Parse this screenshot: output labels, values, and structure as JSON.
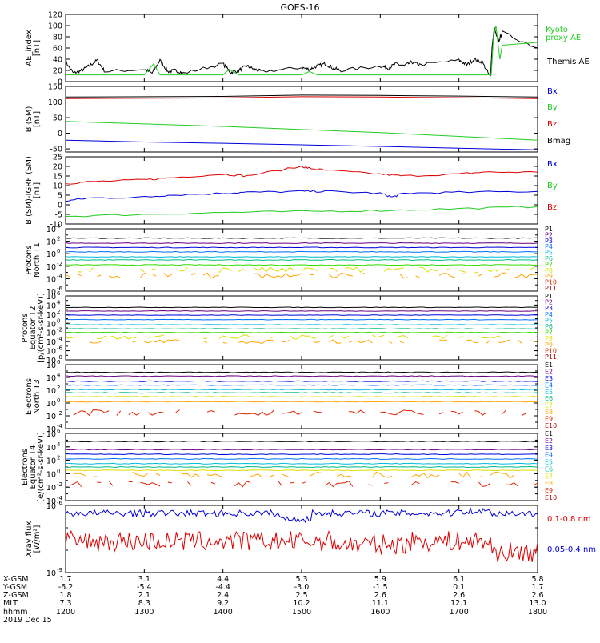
{
  "title": "GOES-16",
  "date": "2019 Dec 15",
  "chart_data": [
    {
      "type": "line",
      "panel": "ae",
      "ylabel_lines": [
        "AE_index",
        "[nT]"
      ],
      "ylim": [
        0,
        120
      ],
      "yticks": [
        "0",
        "20",
        "40",
        "60",
        "80",
        "100",
        "120"
      ],
      "yticks_values": [
        0,
        20,
        40,
        60,
        80,
        100,
        120
      ],
      "legend": [
        {
          "text": "Kyoto",
          "color": "#22cc22"
        },
        {
          "text": "proxy AE",
          "color": "#22cc22"
        },
        {
          "text": "Themis AE",
          "color": "#000000"
        }
      ],
      "series": [
        {
          "name": "Themis AE",
          "color": "#000000",
          "x": [
            1200,
            1210,
            1220,
            1230,
            1240,
            1250,
            1300,
            1310,
            1320,
            1330,
            1340,
            1350,
            1400,
            1410,
            1420,
            1430,
            1440,
            1450,
            1500,
            1510,
            1520,
            1530,
            1540,
            1550,
            1600,
            1610,
            1620,
            1630,
            1640,
            1650,
            1700,
            1710,
            1720,
            1730,
            1740,
            1742,
            1745,
            1750,
            1755,
            1800
          ],
          "y": [
            35,
            15,
            20,
            28,
            38,
            18,
            22,
            15,
            38,
            18,
            20,
            15,
            32,
            16,
            20,
            28,
            22,
            18,
            25,
            22,
            28,
            32,
            24,
            20,
            28,
            24,
            32,
            28,
            35,
            30,
            38,
            30,
            40,
            34,
            8,
            60,
            95,
            70,
            88,
            60
          ]
        },
        {
          "name": "Kyoto proxy AE",
          "color": "#22cc22",
          "x": [
            1200,
            1230,
            1300,
            1312,
            1320,
            1330,
            1400,
            1408,
            1420,
            1500,
            1510,
            1520,
            1600,
            1640,
            1700,
            1735,
            1741,
            1744,
            1747,
            1752,
            1755,
            1800
          ],
          "y": [
            12,
            12,
            12,
            32,
            12,
            12,
            12,
            22,
            12,
            12,
            18,
            12,
            12,
            12,
            12,
            12,
            12,
            80,
            100,
            40,
            65,
            70
          ]
        }
      ]
    },
    {
      "type": "line",
      "panel": "b_sm",
      "ylabel_lines": [
        "B (SM)",
        "[nT]"
      ],
      "ylim": [
        -60,
        150
      ],
      "yticks": [
        "-50",
        "0",
        "50",
        "100",
        "150"
      ],
      "yticks_values": [
        -50,
        0,
        50,
        100,
        150
      ],
      "legend": [
        {
          "text": "Bx",
          "color": "#0000dd"
        },
        {
          "text": "By",
          "color": "#22cc22"
        },
        {
          "text": "Bz",
          "color": "#dd0000"
        },
        {
          "text": "Bmag",
          "color": "#000000"
        }
      ],
      "series": [
        {
          "name": "Bmag",
          "color": "#000000",
          "x": [
            1200,
            1400,
            1500,
            1600,
            1700,
            1800
          ],
          "y": [
            116,
            118,
            122,
            121,
            119,
            116
          ]
        },
        {
          "name": "Bz",
          "color": "#dd0000",
          "x": [
            1200,
            1400,
            1500,
            1600,
            1700,
            1800
          ],
          "y": [
            111,
            113,
            117,
            116,
            114,
            111
          ]
        },
        {
          "name": "By",
          "color": "#22cc22",
          "x": [
            1200,
            1300,
            1400,
            1500,
            1600,
            1700,
            1800
          ],
          "y": [
            38,
            30,
            22,
            12,
            2,
            -10,
            -22
          ]
        },
        {
          "name": "Bx",
          "color": "#0000dd",
          "x": [
            1200,
            1300,
            1400,
            1500,
            1600,
            1700,
            1800
          ],
          "y": [
            -22,
            -28,
            -32,
            -37,
            -42,
            -48,
            -53
          ]
        }
      ]
    },
    {
      "type": "line",
      "panel": "b_igrf",
      "ylabel_lines": [
        "B (SM)-IGRF (SM)",
        "[nT]"
      ],
      "ylim": [
        -10,
        25
      ],
      "yticks": [
        "-10",
        "-5",
        "0",
        "5",
        "10",
        "15",
        "20",
        "25"
      ],
      "yticks_values": [
        -10,
        -5,
        0,
        5,
        10,
        15,
        20,
        25
      ],
      "legend": [
        {
          "text": "Bx",
          "color": "#0000dd"
        },
        {
          "text": "By",
          "color": "#22cc22"
        },
        {
          "text": "Bz",
          "color": "#dd0000"
        }
      ],
      "series": [
        {
          "name": "Bz",
          "color": "#dd0000",
          "x": [
            1200,
            1230,
            1300,
            1330,
            1400,
            1430,
            1500,
            1510,
            1530,
            1600,
            1630,
            1700,
            1730,
            1800
          ],
          "y": [
            11,
            12,
            13,
            14,
            16,
            15,
            20,
            19,
            18,
            16,
            15,
            16,
            17,
            17
          ]
        },
        {
          "name": "Bx",
          "color": "#0000dd",
          "x": [
            1200,
            1230,
            1300,
            1330,
            1400,
            1430,
            1500,
            1530,
            1600,
            1615,
            1630,
            1700,
            1800
          ],
          "y": [
            2,
            3.5,
            4,
            5,
            6,
            6.5,
            7,
            7,
            6,
            4,
            6,
            6.5,
            7
          ]
        },
        {
          "name": "By",
          "color": "#22cc22",
          "x": [
            1200,
            1300,
            1400,
            1500,
            1600,
            1700,
            1800
          ],
          "y": [
            -6,
            -5,
            -4,
            -3.5,
            -3,
            -2,
            -1
          ]
        }
      ]
    },
    {
      "type": "line",
      "panel": "protons_t1",
      "log": true,
      "ylabel_lines": [
        "Protons",
        "North T1"
      ],
      "ylim_exp": [
        -6,
        4
      ],
      "yticks": [
        "10",
        "10",
        "10",
        "10",
        "10",
        "10"
      ],
      "yticks_exp": [
        "4",
        "2",
        "0",
        "-2",
        "-4",
        "-6"
      ],
      "yticks_values": [
        4,
        2,
        0,
        -2,
        -4,
        -6
      ],
      "channels": [
        "P1",
        "P2",
        "P3",
        "P4",
        "P5",
        "P6",
        "P7",
        "P8",
        "P9",
        "P10",
        "P11"
      ],
      "channel_colors": [
        "#000000",
        "#6a0080",
        "#0000dd",
        "#0070ff",
        "#00bbdd",
        "#00bb88",
        "#33dd00",
        "#d8e000",
        "#ffa500",
        "#dd2200",
        "#aa0000"
      ],
      "levels": [
        2.5,
        1.7,
        1.0,
        0.3,
        -0.5,
        -1.0,
        -1.8,
        -2.6,
        -3.5
      ]
    },
    {
      "type": "line",
      "panel": "protons_t2",
      "log": true,
      "ylabel_lines": [
        "Protons",
        "Equator T2",
        "[p/(cm²-s-sr-keV)]"
      ],
      "ylim_exp": [
        -8,
        6
      ],
      "yticks": [
        "10",
        "10",
        "10",
        "10",
        "10",
        "10",
        "10",
        "10"
      ],
      "yticks_exp": [
        "6",
        "4",
        "2",
        "0",
        "-2",
        "-4",
        "-6",
        "-8"
      ],
      "yticks_values": [
        6,
        4,
        2,
        0,
        -2,
        -4,
        -6,
        -8
      ],
      "channels": [
        "P1",
        "P2",
        "P3",
        "P4",
        "P5",
        "P6",
        "P7",
        "P8",
        "P9",
        "P10",
        "P11"
      ],
      "channel_colors": [
        "#000000",
        "#6a0080",
        "#0000dd",
        "#0070ff",
        "#00bbdd",
        "#00bb88",
        "#33dd00",
        "#d8e000",
        "#ffa500",
        "#dd2200",
        "#aa0000"
      ],
      "levels": [
        3.5,
        2.7,
        1.8,
        0.8,
        -0.3,
        -1.2,
        -2.0,
        -3.0,
        -4.0
      ]
    },
    {
      "type": "line",
      "panel": "electrons_t3",
      "log": true,
      "ylabel_lines": [
        "Electrons",
        "North T3"
      ],
      "ylim_exp": [
        -4,
        6
      ],
      "yticks": [
        "10",
        "10",
        "10",
        "10",
        "10",
        "10"
      ],
      "yticks_exp": [
        "6",
        "4",
        "2",
        "0",
        "-2",
        "-4"
      ],
      "yticks_values": [
        6,
        4,
        2,
        0,
        -2,
        -4
      ],
      "channels": [
        "E1",
        "E2",
        "E3",
        "E4",
        "E5",
        "E6",
        "E7",
        "E8",
        "E9",
        "E10"
      ],
      "channel_colors": [
        "#000000",
        "#6a0080",
        "#0000dd",
        "#0070ff",
        "#00bbdd",
        "#00bb88",
        "#d8e000",
        "#ffa500",
        "#dd2200",
        "#aa0000"
      ],
      "levels": [
        4.8,
        4.2,
        3.4,
        2.8,
        2.1,
        1.6,
        1.0,
        0.2,
        -1.5
      ]
    },
    {
      "type": "line",
      "panel": "electrons_t4",
      "log": true,
      "ylabel_lines": [
        "Electrons",
        "Equator T4",
        "[e/(cm²-s-sr-keV)]"
      ],
      "ylim_exp": [
        -4,
        6
      ],
      "yticks": [
        "10",
        "10",
        "10",
        "10",
        "10",
        "10"
      ],
      "yticks_exp": [
        "6",
        "4",
        "2",
        "0",
        "-2",
        "-4"
      ],
      "yticks_values": [
        6,
        4,
        2,
        0,
        -2,
        -4
      ],
      "channels": [
        "E1",
        "E2",
        "E3",
        "E4",
        "E5",
        "E6",
        "E7",
        "E8",
        "E9",
        "E10"
      ],
      "channel_colors": [
        "#000000",
        "#6a0080",
        "#0000dd",
        "#0070ff",
        "#00bbdd",
        "#00bb88",
        "#d8e000",
        "#ffa500",
        "#dd2200",
        "#aa0000"
      ],
      "levels": [
        4.8,
        3.6,
        2.9,
        2.2,
        1.5,
        1.0,
        0.5,
        -0.2,
        -1.5
      ]
    },
    {
      "type": "line",
      "panel": "xray",
      "log": true,
      "ylabel_lines": [
        "Xray flux",
        "[W/m²]"
      ],
      "ylim_exp": [
        -9,
        -6
      ],
      "yticks": [
        "10",
        "10"
      ],
      "yticks_exp": [
        "-6",
        "-9"
      ],
      "yticks_values": [
        -6,
        -9
      ],
      "legend": [
        {
          "text": "0.1-0.8 nm",
          "color": "#dd0000"
        },
        {
          "text": "0.05-0.4 nm",
          "color": "#0000dd"
        }
      ],
      "series": [
        {
          "name": "0.1-0.8 nm",
          "color": "#dd0000",
          "base": -7.6
        },
        {
          "name": "0.05-0.4 nm",
          "color": "#0000dd",
          "base": -6.35
        }
      ]
    }
  ],
  "x_axis": {
    "range": [
      1200,
      1800
    ],
    "row_labels": [
      "X-GSM",
      "Y-GSM",
      "Z-GSM",
      "MLT",
      "hhmm"
    ],
    "columns": [
      {
        "x": 1200,
        "values": [
          "1.7",
          "-6.2",
          "1.8",
          "7.3",
          "1200"
        ]
      },
      {
        "x": 1300,
        "values": [
          "3.1",
          "-5.4",
          "2.1",
          "8.3",
          "1300"
        ]
      },
      {
        "x": 1400,
        "values": [
          "4.4",
          "-4.4",
          "2.4",
          "9.2",
          "1400"
        ]
      },
      {
        "x": 1500,
        "values": [
          "5.3",
          "-3.0",
          "2.5",
          "10.2",
          "1500"
        ]
      },
      {
        "x": 1600,
        "values": [
          "5.9",
          "-1.5",
          "2.6",
          "11.1",
          "1600"
        ]
      },
      {
        "x": 1700,
        "values": [
          "6.1",
          "0.1",
          "2.6",
          "12.1",
          "1700"
        ]
      },
      {
        "x": 1800,
        "values": [
          "5.8",
          "1.7",
          "2.6",
          "13.0",
          "1800"
        ]
      }
    ]
  }
}
